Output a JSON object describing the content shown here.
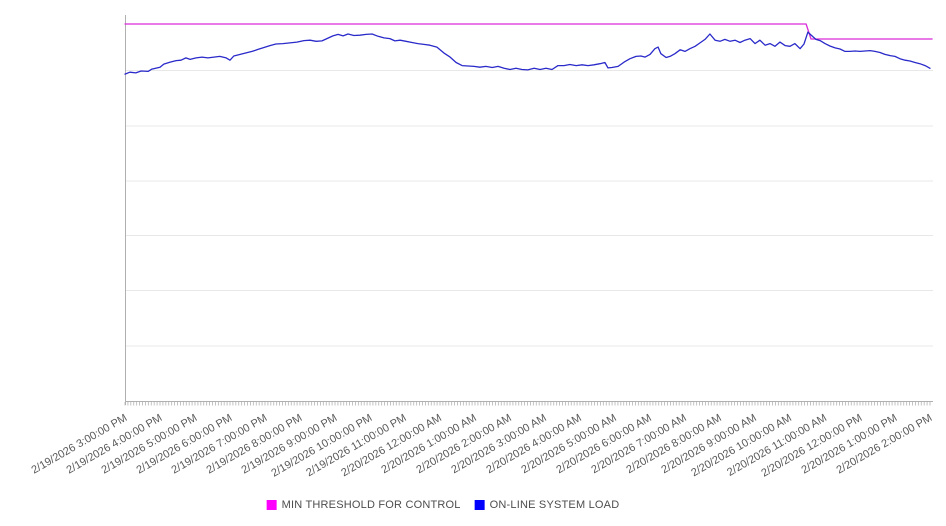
{
  "chart_data": {
    "type": "line",
    "title": "",
    "grid": "horizontal-only",
    "legend_position": "bottom-center",
    "x_axis": {
      "label": "",
      "start": "2/19/2026 3:00:00 PM",
      "end": "2/20/2026 2:00:00 PM",
      "minor_tick_minutes": 5,
      "tick_labels": [
        "2/19/2026 3:00:00 PM",
        "2/19/2026 4:00:00 PM",
        "2/19/2026 5:00:00 PM",
        "2/19/2026 6:00:00 PM",
        "2/19/2026 7:00:00 PM",
        "2/19/2026 8:00:00 PM",
        "2/19/2026 9:00:00 PM",
        "2/19/2026 10:00:00 PM",
        "2/19/2026 11:00:00 PM",
        "2/20/2026 12:00:00 AM",
        "2/20/2026 1:00:00 AM",
        "2/20/2026 2:00:00 AM",
        "2/20/2026 3:00:00 AM",
        "2/20/2026 4:00:00 AM",
        "2/20/2026 5:00:00 AM",
        "2/20/2026 6:00:00 AM",
        "2/20/2026 7:00:00 AM",
        "2/20/2026 8:00:00 AM",
        "2/20/2026 9:00:00 AM",
        "2/20/2026 10:00:00 AM",
        "2/20/2026 11:00:00 AM",
        "2/20/2026 12:00:00 PM",
        "2/20/2026 1:00:00 PM",
        "2/20/2026 2:00:00 PM"
      ]
    },
    "y_axis": {
      "label": "",
      "tick_labels_visible": false,
      "note": "no y-axis tick labels shown; values are relative 0-100 plot scale",
      "range": [
        0,
        100
      ],
      "gridlines": [
        14.3,
        28.6,
        42.9,
        57.1,
        71.4,
        85.7
      ]
    },
    "series": [
      {
        "name": "MIN THRESHOLD FOR CONTROL",
        "color": "#D92BD9",
        "legend_color": "#FF00FF",
        "x_unit": "hours since 2/19/2026 3:00 PM",
        "points": [
          [
            0,
            97.8
          ],
          [
            19.46,
            97.8
          ],
          [
            19.6,
            93.9
          ],
          [
            23.06,
            93.9
          ]
        ]
      },
      {
        "name": "ON-LINE SYSTEM LOAD",
        "color": "#2A2ACA",
        "legend_color": "#0000FF",
        "x_unit": "hours since 2/19/2026 3:00 PM",
        "points": [
          [
            0,
            84.8
          ],
          [
            0.14,
            85.3
          ],
          [
            0.31,
            85.1
          ],
          [
            0.46,
            85.6
          ],
          [
            0.66,
            85.5
          ],
          [
            0.77,
            86.1
          ],
          [
            1,
            86.6
          ],
          [
            1.11,
            87.4
          ],
          [
            1.29,
            87.9
          ],
          [
            1.46,
            88.3
          ],
          [
            1.6,
            88.4
          ],
          [
            1.74,
            89
          ],
          [
            1.86,
            88.6
          ],
          [
            2.03,
            89
          ],
          [
            2.2,
            89.2
          ],
          [
            2.37,
            89
          ],
          [
            2.54,
            89.2
          ],
          [
            2.71,
            89.4
          ],
          [
            2.89,
            89
          ],
          [
            3,
            88.4
          ],
          [
            3.11,
            89.5
          ],
          [
            3.29,
            89.9
          ],
          [
            3.46,
            90.3
          ],
          [
            3.63,
            90.7
          ],
          [
            3.8,
            91.2
          ],
          [
            3.97,
            91.7
          ],
          [
            4.14,
            92.2
          ],
          [
            4.31,
            92.6
          ],
          [
            4.51,
            92.7
          ],
          [
            4.71,
            92.9
          ],
          [
            4.91,
            93.1
          ],
          [
            5.11,
            93.5
          ],
          [
            5.29,
            93.6
          ],
          [
            5.46,
            93.3
          ],
          [
            5.63,
            93.4
          ],
          [
            5.77,
            94
          ],
          [
            5.94,
            94.7
          ],
          [
            6.09,
            95.1
          ],
          [
            6.23,
            94.7
          ],
          [
            6.37,
            95.2
          ],
          [
            6.54,
            94.8
          ],
          [
            6.71,
            94.9
          ],
          [
            6.89,
            95.1
          ],
          [
            7.06,
            95.2
          ],
          [
            7.23,
            94.6
          ],
          [
            7.4,
            94.2
          ],
          [
            7.57,
            94
          ],
          [
            7.71,
            93.4
          ],
          [
            7.86,
            93.6
          ],
          [
            8.03,
            93.3
          ],
          [
            8.2,
            93
          ],
          [
            8.37,
            92.7
          ],
          [
            8.54,
            92.5
          ],
          [
            8.71,
            92.3
          ],
          [
            8.91,
            91.8
          ],
          [
            9.11,
            90.3
          ],
          [
            9.29,
            89.2
          ],
          [
            9.46,
            87.8
          ],
          [
            9.63,
            87
          ],
          [
            9.8,
            86.9
          ],
          [
            9.97,
            86.8
          ],
          [
            10.14,
            86.6
          ],
          [
            10.31,
            86.8
          ],
          [
            10.49,
            86.5
          ],
          [
            10.66,
            86.8
          ],
          [
            10.83,
            86.3
          ],
          [
            11,
            86
          ],
          [
            11.17,
            86.3
          ],
          [
            11.34,
            86
          ],
          [
            11.51,
            85.9
          ],
          [
            11.69,
            86.3
          ],
          [
            11.86,
            86
          ],
          [
            12.03,
            86.3
          ],
          [
            12.2,
            86
          ],
          [
            12.37,
            87
          ],
          [
            12.54,
            87
          ],
          [
            12.71,
            87.3
          ],
          [
            12.89,
            87
          ],
          [
            13.06,
            87.2
          ],
          [
            13.23,
            87
          ],
          [
            13.4,
            87.2
          ],
          [
            13.57,
            87.5
          ],
          [
            13.71,
            87.8
          ],
          [
            13.8,
            86.4
          ],
          [
            13.91,
            86.5
          ],
          [
            14.09,
            86.8
          ],
          [
            14.26,
            87.9
          ],
          [
            14.43,
            88.8
          ],
          [
            14.6,
            89.4
          ],
          [
            14.74,
            89.5
          ],
          [
            14.86,
            89.2
          ],
          [
            15,
            89.9
          ],
          [
            15.14,
            91.4
          ],
          [
            15.23,
            91.8
          ],
          [
            15.31,
            90.1
          ],
          [
            15.46,
            89.1
          ],
          [
            15.57,
            89.4
          ],
          [
            15.71,
            90.1
          ],
          [
            15.86,
            91.1
          ],
          [
            16,
            90.7
          ],
          [
            16.14,
            91.4
          ],
          [
            16.29,
            92
          ],
          [
            16.43,
            92.9
          ],
          [
            16.57,
            93.8
          ],
          [
            16.71,
            95.2
          ],
          [
            16.86,
            93.6
          ],
          [
            17,
            93.3
          ],
          [
            17.14,
            93.8
          ],
          [
            17.29,
            93.3
          ],
          [
            17.43,
            93.6
          ],
          [
            17.57,
            93
          ],
          [
            17.71,
            93.6
          ],
          [
            17.86,
            94
          ],
          [
            18,
            92.7
          ],
          [
            18.14,
            93.6
          ],
          [
            18.29,
            92.3
          ],
          [
            18.43,
            92.7
          ],
          [
            18.57,
            92
          ],
          [
            18.71,
            93.1
          ],
          [
            18.86,
            92.2
          ],
          [
            19,
            92
          ],
          [
            19.14,
            92.7
          ],
          [
            19.29,
            91.4
          ],
          [
            19.4,
            92.6
          ],
          [
            19.51,
            95.7
          ],
          [
            19.63,
            94.7
          ],
          [
            19.74,
            93.8
          ],
          [
            19.86,
            93.5
          ],
          [
            20,
            92.7
          ],
          [
            20.14,
            92.1
          ],
          [
            20.29,
            91.6
          ],
          [
            20.43,
            91.3
          ],
          [
            20.57,
            90.7
          ],
          [
            20.71,
            90.7
          ],
          [
            20.86,
            90.8
          ],
          [
            21,
            90.7
          ],
          [
            21.14,
            90.8
          ],
          [
            21.29,
            90.9
          ],
          [
            21.43,
            90.7
          ],
          [
            21.57,
            90.4
          ],
          [
            21.71,
            89.9
          ],
          [
            21.86,
            89.6
          ],
          [
            22,
            89.4
          ],
          [
            22.14,
            88.8
          ],
          [
            22.29,
            88.4
          ],
          [
            22.43,
            88.2
          ],
          [
            22.57,
            87.8
          ],
          [
            22.71,
            87.5
          ],
          [
            22.86,
            87
          ],
          [
            23,
            86.3
          ]
        ]
      }
    ],
    "style": {
      "grid_color": "#e8e8e8",
      "axis_color": "#b0b0b0",
      "tick_color": "#b3b3b3",
      "label_color": "#595959",
      "legend_text_color": "#4d4d4d"
    }
  }
}
